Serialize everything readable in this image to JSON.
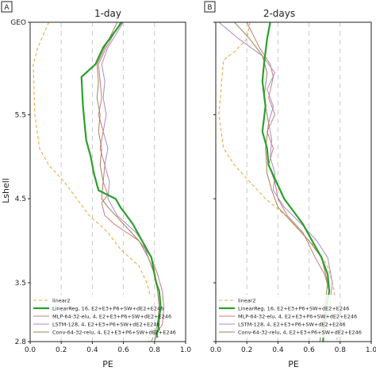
{
  "chart_data": [
    {
      "type": "line",
      "panel_label": "A",
      "title": "1-day",
      "xlabel": "PE",
      "ylabel": "Lshell",
      "xlim": [
        0.0,
        1.0
      ],
      "ylim": [
        2.8,
        6.6
      ],
      "xticks": [
        0.0,
        0.2,
        0.4,
        0.6,
        0.8,
        1.0
      ],
      "xtick_labels": [
        "0.0",
        "0.2",
        "0.4",
        "0.6",
        "0.8",
        "1.0"
      ],
      "yticks": [
        2.8,
        3.5,
        4.5,
        5.5,
        6.6
      ],
      "ytick_labels": [
        "2.8",
        "3.5",
        "4.5",
        "5.5",
        "GEO"
      ],
      "grid": "vertical dashed lines at x = 0.2, 0.4, 0.6, 0.8",
      "legend_position": "bottom-left",
      "series": [
        {
          "name": "linear2",
          "color": "#f5a742",
          "style": "dashed",
          "x": [
            0.12,
            0.05,
            0.02,
            0.03,
            0.06,
            0.12,
            0.22,
            0.3,
            0.38,
            0.5,
            0.58,
            0.7,
            0.75,
            0.78,
            0.78,
            0.77,
            0.76
          ],
          "y": [
            6.6,
            6.3,
            6.1,
            5.5,
            5.1,
            4.9,
            4.7,
            4.5,
            4.3,
            4.1,
            3.9,
            3.7,
            3.5,
            3.3,
            3.1,
            2.95,
            2.8
          ]
        },
        {
          "name": "LinearReg, 16, E2+E3+P6+SW+dE2+E246",
          "color": "#2ca02c",
          "style": "solid-thick",
          "x": [
            0.59,
            0.47,
            0.42,
            0.36,
            0.33,
            0.34,
            0.36,
            0.39,
            0.41,
            0.44,
            0.55,
            0.58,
            0.66,
            0.72,
            0.78,
            0.8,
            0.81,
            0.83,
            0.84,
            0.82,
            0.83,
            0.81,
            0.82
          ],
          "y": [
            6.6,
            6.3,
            6.1,
            6.0,
            5.95,
            5.6,
            5.2,
            5.0,
            4.8,
            4.6,
            4.5,
            4.4,
            4.2,
            4.0,
            3.8,
            3.6,
            3.5,
            3.4,
            3.2,
            3.0,
            2.95,
            2.9,
            2.85
          ]
        },
        {
          "name": "MLP-64-32-elu, 4, E2+E3+P6+SW+dE2+E246",
          "color": "#c77c7c",
          "style": "solid",
          "x": [
            0.58,
            0.49,
            0.44,
            0.45,
            0.46,
            0.44,
            0.47,
            0.45,
            0.48,
            0.47,
            0.5,
            0.46,
            0.48,
            0.54,
            0.62,
            0.7,
            0.78,
            0.82,
            0.85,
            0.86,
            0.85,
            0.83,
            0.82,
            0.8
          ],
          "y": [
            6.6,
            6.3,
            6.1,
            5.9,
            5.7,
            5.5,
            5.3,
            5.1,
            4.9,
            4.7,
            4.55,
            4.45,
            4.3,
            4.2,
            4.1,
            4.0,
            3.8,
            3.6,
            3.4,
            3.2,
            3.0,
            2.95,
            2.9,
            2.8
          ]
        },
        {
          "name": "LSTM-128, 4, E2+E3+P6+SW+dE2+E246",
          "color": "#a98bc9",
          "style": "solid",
          "x": [
            0.6,
            0.5,
            0.46,
            0.48,
            0.47,
            0.49,
            0.47,
            0.5,
            0.48,
            0.51,
            0.5,
            0.53,
            0.56,
            0.62,
            0.68,
            0.72,
            0.76,
            0.8,
            0.83,
            0.84,
            0.83,
            0.81,
            0.8
          ],
          "y": [
            6.6,
            6.3,
            6.1,
            5.9,
            5.7,
            5.5,
            5.3,
            5.1,
            4.9,
            4.7,
            4.5,
            4.4,
            4.3,
            4.2,
            4.1,
            4.0,
            3.8,
            3.6,
            3.4,
            3.2,
            3.0,
            2.9,
            2.8
          ]
        },
        {
          "name": "Conv-64-32-relu, 4, E2+E3+P6+SW+dE2+E246",
          "color": "#a0825a",
          "style": "solid",
          "x": [
            0.56,
            0.48,
            0.43,
            0.44,
            0.43,
            0.45,
            0.44,
            0.46,
            0.45,
            0.47,
            0.46,
            0.5,
            0.6,
            0.7,
            0.76,
            0.8,
            0.82,
            0.83,
            0.82,
            0.8,
            0.78
          ],
          "y": [
            6.6,
            6.3,
            6.1,
            5.9,
            5.7,
            5.5,
            5.3,
            5.1,
            4.9,
            4.7,
            4.5,
            4.4,
            4.2,
            4.0,
            3.8,
            3.6,
            3.4,
            3.2,
            3.0,
            2.9,
            2.8
          ]
        }
      ]
    },
    {
      "type": "line",
      "panel_label": "B",
      "title": "2-days",
      "xlabel": "PE",
      "ylabel": "",
      "xlim": [
        0.0,
        1.0
      ],
      "ylim": [
        2.8,
        6.6
      ],
      "xticks": [
        0.0,
        0.2,
        0.4,
        0.6,
        0.8,
        1.0
      ],
      "xtick_labels": [
        "0.0",
        "0.2",
        "0.4",
        "0.6",
        "0.8",
        "1.0"
      ],
      "yticks": [
        2.8,
        3.5,
        4.5,
        5.5,
        6.6
      ],
      "ytick_labels": [
        "",
        "",
        "",
        "",
        ""
      ],
      "grid": "vertical dashed lines at x = 0.2, 0.4, 0.6, 0.8",
      "legend_position": "bottom-left",
      "series": [
        {
          "name": "linear2",
          "color": "#f5a742",
          "style": "dashed",
          "x": [
            0.22,
            0.2,
            0.12,
            0.05,
            0.02,
            0.05,
            0.12,
            0.22,
            0.32,
            0.45,
            0.55,
            0.65,
            0.72,
            0.75,
            0.77,
            0.78,
            0.78
          ],
          "y": [
            6.6,
            6.4,
            6.25,
            6.15,
            5.5,
            5.1,
            4.9,
            4.7,
            4.5,
            4.3,
            4.1,
            3.9,
            3.7,
            3.5,
            3.3,
            3.0,
            2.8
          ]
        },
        {
          "name": "LinearReg, 16, E2+E3+P6+SW+dE2+E246",
          "color": "#2ca02c",
          "style": "solid-thick",
          "x": [
            0.35,
            0.33,
            0.31,
            0.3,
            0.32,
            0.3,
            0.33,
            0.34,
            0.39,
            0.44,
            0.5,
            0.56,
            0.62,
            0.68,
            0.72,
            0.73,
            0.71,
            0.7,
            0.69
          ],
          "y": [
            6.6,
            6.4,
            6.1,
            5.9,
            5.6,
            5.3,
            5.1,
            4.9,
            4.7,
            4.5,
            4.35,
            4.2,
            4.0,
            3.8,
            3.6,
            3.4,
            3.2,
            3.0,
            2.8
          ]
        },
        {
          "name": "MLP-64-32-elu, 4, E2+E3+P6+SW+dE2+E246",
          "color": "#c77c7c",
          "style": "solid",
          "x": [
            0.2,
            0.28,
            0.35,
            0.37,
            0.34,
            0.38,
            0.33,
            0.37,
            0.34,
            0.38,
            0.4,
            0.46,
            0.56,
            0.64,
            0.7,
            0.73,
            0.71,
            0.69,
            0.67
          ],
          "y": [
            6.6,
            6.3,
            6.1,
            5.95,
            5.7,
            5.5,
            5.3,
            5.1,
            4.9,
            4.7,
            4.5,
            4.3,
            4.1,
            3.8,
            3.6,
            3.4,
            3.2,
            3.0,
            2.8
          ]
        },
        {
          "name": "LSTM-128, 4, E2+E3+P6+SW+dE2+E246",
          "color": "#a98bc9",
          "style": "solid",
          "x": [
            0.02,
            0.15,
            0.3,
            0.38,
            0.33,
            0.37,
            0.34,
            0.36,
            0.35,
            0.38,
            0.37,
            0.44,
            0.55,
            0.65,
            0.72,
            0.75,
            0.73,
            0.7,
            0.69
          ],
          "y": [
            6.6,
            6.4,
            6.2,
            6.0,
            5.8,
            5.6,
            5.4,
            5.2,
            5.0,
            4.8,
            4.6,
            4.4,
            4.2,
            4.0,
            3.8,
            3.5,
            3.2,
            3.0,
            2.8
          ]
        },
        {
          "name": "Conv-64-32-relu, 4, E2+E3+P6+SW+dE2+E246",
          "color": "#a0825a",
          "style": "solid",
          "x": [
            0.12,
            0.22,
            0.3,
            0.33,
            0.31,
            0.34,
            0.32,
            0.33,
            0.36,
            0.4,
            0.5,
            0.6,
            0.68,
            0.72,
            0.7,
            0.68,
            0.67
          ],
          "y": [
            6.6,
            6.4,
            6.2,
            6.0,
            5.7,
            5.4,
            5.1,
            4.8,
            4.6,
            4.4,
            4.2,
            4.0,
            3.8,
            3.5,
            3.2,
            3.0,
            2.8
          ]
        }
      ]
    }
  ]
}
